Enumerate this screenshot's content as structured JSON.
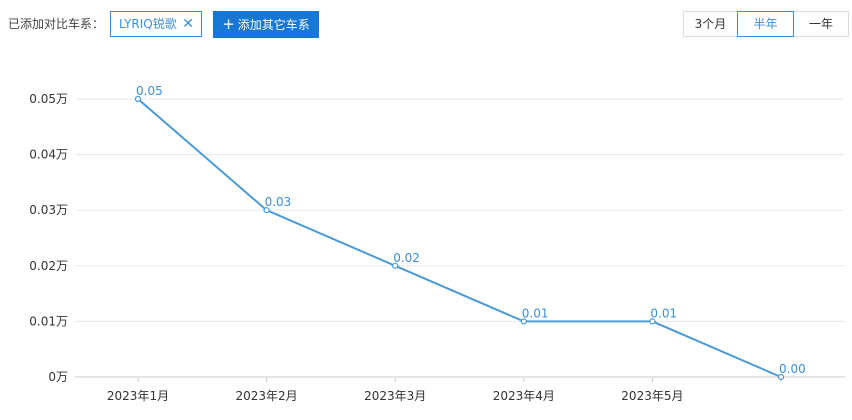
{
  "toolbar": {
    "compare_label": "已添加对比车系：",
    "series_tag": "LYRIQ锐歌",
    "remove_icon": "✕",
    "add_button": "添加其它车系",
    "add_icon": "+",
    "ranges": [
      {
        "label": "3个月",
        "active": false
      },
      {
        "label": "半年",
        "active": true
      },
      {
        "label": "一年",
        "active": false
      }
    ]
  },
  "chart_data": {
    "type": "line",
    "categories": [
      "2023年1月",
      "2023年2月",
      "2023年3月",
      "2023年4月",
      "2023年5月",
      ""
    ],
    "series": [
      {
        "values": [
          0.05,
          0.03,
          0.02,
          0.01,
          0.01,
          0.0
        ],
        "labels": [
          "0.05",
          "0.03",
          "0.02",
          "0.01",
          "0.01",
          "0.00"
        ],
        "color": "#4a9ad6"
      }
    ],
    "yticks": [
      {
        "value": 0,
        "label": "0万"
      },
      {
        "value": 0.01,
        "label": "0.01万"
      },
      {
        "value": 0.02,
        "label": "0.02万"
      },
      {
        "value": 0.03,
        "label": "0.03万"
      },
      {
        "value": 0.04,
        "label": "0.04万"
      },
      {
        "value": 0.05,
        "label": "0.05万"
      }
    ],
    "ylim": [
      0,
      0.05
    ],
    "grid": true,
    "grid_color": "#e8e8e8",
    "axis_color": "#cccccc"
  }
}
